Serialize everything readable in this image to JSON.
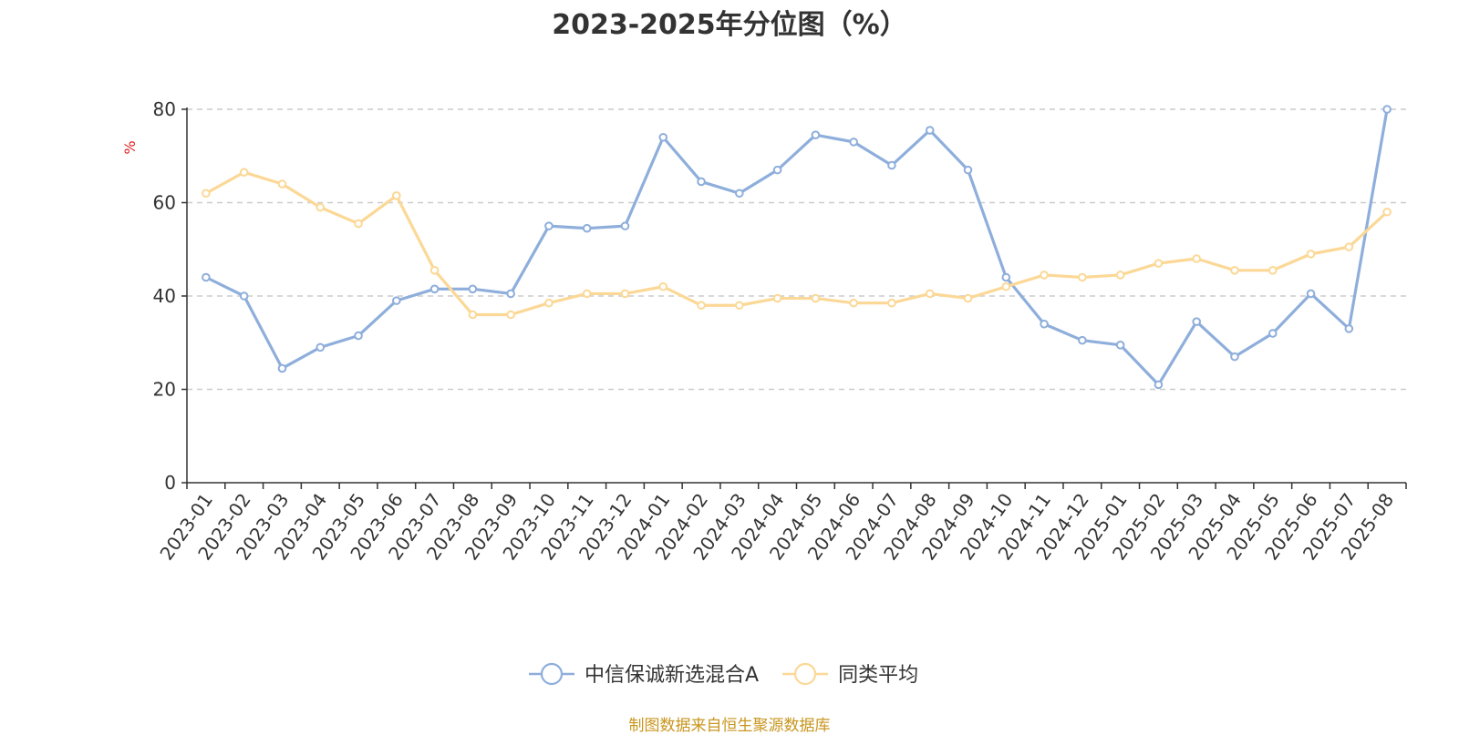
{
  "chart_data": {
    "type": "line",
    "title": "2023-2025年分位图（%）",
    "ylabel": "%",
    "ylim": [
      0,
      80
    ],
    "yticks": [
      0,
      20,
      40,
      60,
      80
    ],
    "grid": true,
    "legend_position": "bottom",
    "categories": [
      "2023-01",
      "2023-02",
      "2023-03",
      "2023-04",
      "2023-05",
      "2023-06",
      "2023-07",
      "2023-08",
      "2023-09",
      "2023-10",
      "2023-11",
      "2023-12",
      "2024-01",
      "2024-02",
      "2024-03",
      "2024-04",
      "2024-05",
      "2024-06",
      "2024-07",
      "2024-08",
      "2024-09",
      "2024-10",
      "2024-11",
      "2024-12",
      "2025-01",
      "2025-02",
      "2025-03",
      "2025-04",
      "2025-05",
      "2025-06",
      "2025-07",
      "2025-08"
    ],
    "series": [
      {
        "name": "中信保诚新选混合A",
        "color": "#8eaedb",
        "values": [
          44,
          40,
          24.5,
          29,
          31.5,
          39,
          41.5,
          41.5,
          40.5,
          55,
          54.5,
          55,
          74,
          64.5,
          62,
          67,
          74.5,
          73,
          68,
          75.5,
          67,
          44,
          34,
          30.5,
          29.5,
          21,
          34.5,
          27,
          32,
          40.5,
          33,
          80
        ]
      },
      {
        "name": "同类平均",
        "color": "#fbd896",
        "values": [
          62,
          66.5,
          64,
          59,
          55.5,
          61.5,
          45.5,
          36,
          36,
          38.5,
          40.5,
          40.5,
          42,
          38,
          38,
          39.5,
          39.5,
          38.5,
          38.5,
          40.5,
          39.5,
          42,
          44.5,
          44,
          44.5,
          47,
          48,
          45.5,
          45.5,
          49,
          50.5,
          58
        ]
      }
    ],
    "source": "制图数据来自恒生聚源数据库",
    "ylabel_color": "#e02020"
  }
}
